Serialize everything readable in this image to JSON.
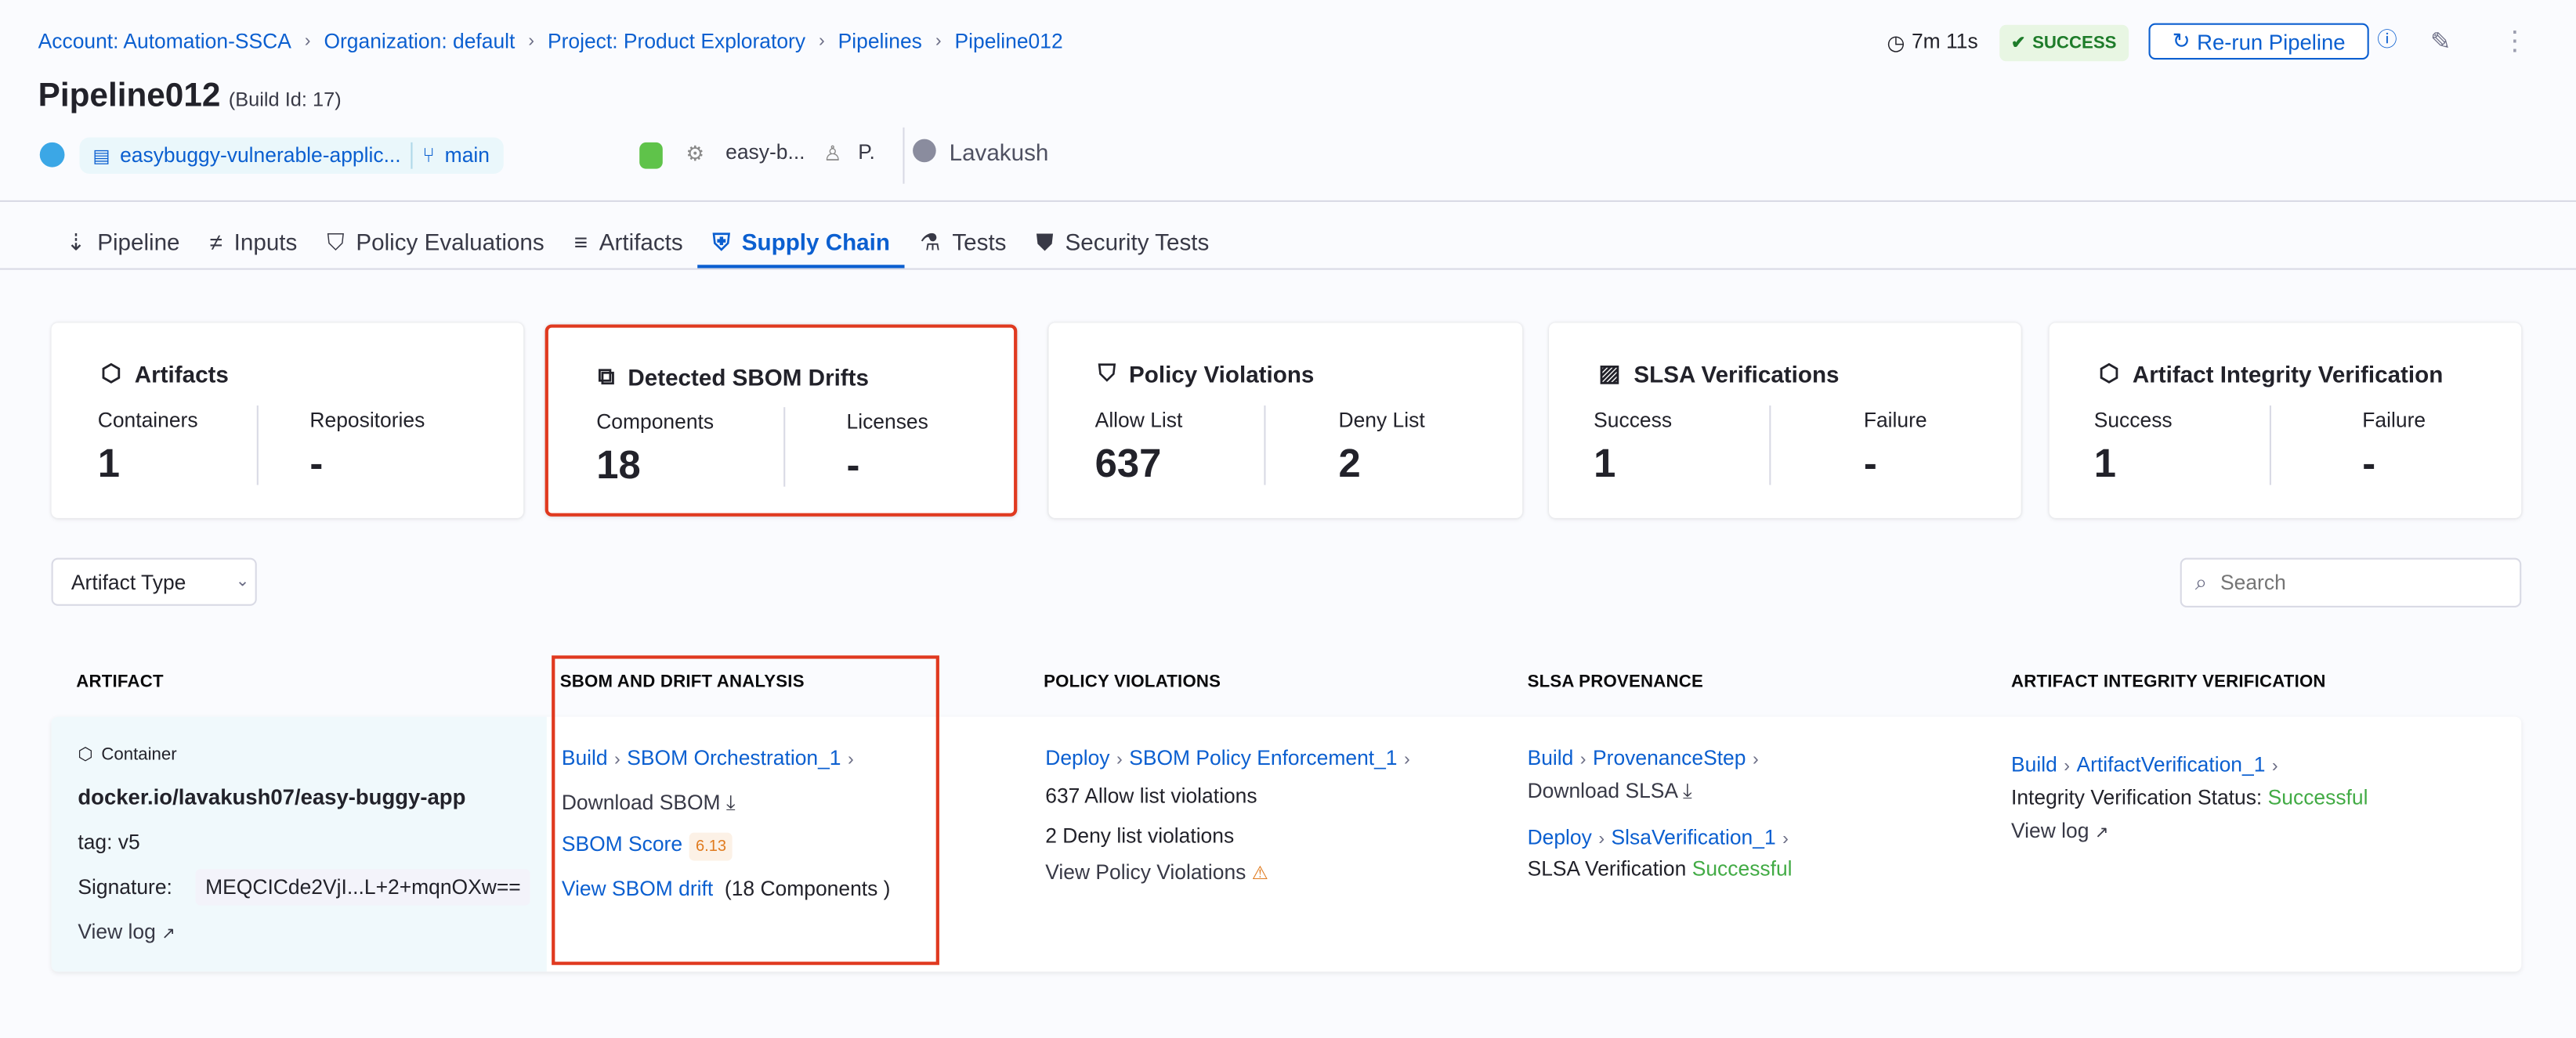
{
  "breadcrumb": [
    "Account: Automation-SSCA",
    "Organization: default",
    "Project: Product Exploratory",
    "Pipelines",
    "Pipeline012"
  ],
  "header": {
    "title": "Pipeline012",
    "build_id": "(Build Id: 17)",
    "repo": "easybuggy-vulnerable-applic...",
    "branch": "main",
    "stage": "easy-b...",
    "infra": "P.",
    "user": "Lavakush",
    "duration": "7m 11s",
    "status": "SUCCESS",
    "rerun_label": "Re-run Pipeline"
  },
  "tabs": [
    {
      "label": "Pipeline"
    },
    {
      "label": "Inputs"
    },
    {
      "label": "Policy Evaluations"
    },
    {
      "label": "Artifacts"
    },
    {
      "label": "Supply Chain",
      "active": true
    },
    {
      "label": "Tests"
    },
    {
      "label": "Security Tests"
    }
  ],
  "cards": [
    {
      "title": "Artifacts",
      "left_label": "Containers",
      "left_value": "1",
      "right_label": "Repositories",
      "right_value": "-"
    },
    {
      "title": "Detected SBOM Drifts",
      "left_label": "Components",
      "left_value": "18",
      "right_label": "Licenses",
      "right_value": "-",
      "highlighted": true
    },
    {
      "title": "Policy Violations",
      "left_label": "Allow List",
      "left_value": "637",
      "right_label": "Deny List",
      "right_value": "2"
    },
    {
      "title": "SLSA Verifications",
      "left_label": "Success",
      "left_value": "1",
      "right_label": "Failure",
      "right_value": "-"
    },
    {
      "title": "Artifact Integrity Verification",
      "left_label": "Success",
      "left_value": "1",
      "right_label": "Failure",
      "right_value": "-"
    }
  ],
  "filter": {
    "artifact_type": "Artifact Type",
    "search_placeholder": "Search"
  },
  "table": {
    "headers": [
      "ARTIFACT",
      "SBOM AND DRIFT ANALYSIS",
      "POLICY VIOLATIONS",
      "SLSA PROVENANCE",
      "ARTIFACT INTEGRITY VERIFICATION"
    ],
    "row": {
      "artifact": {
        "type": "Container",
        "name": "docker.io/lavakush07/easy-buggy-app",
        "tag": "tag: v5",
        "signature_label": "Signature:",
        "signature": "MEQCICde2VjI...L+2+mqnOXw==",
        "view_log": "View log"
      },
      "sbom": {
        "stage": "Build",
        "step": "SBOM Orchestration_1",
        "download": "Download SBOM",
        "score_label": "SBOM Score",
        "score": "6.13",
        "drift_link": "View SBOM drift",
        "drift_count": "(18 Components )"
      },
      "policy": {
        "stage": "Deploy",
        "step": "SBOM Policy Enforcement_1",
        "allow": "637 Allow list violations",
        "deny": "2 Deny list violations",
        "view": "View Policy Violations"
      },
      "slsa": {
        "stage": "Build",
        "step": "ProvenanceStep",
        "download": "Download SLSA",
        "verify_stage": "Deploy",
        "verify_step": "SlsaVerification_1",
        "verify_label": "SLSA Verification",
        "verify_status": "Successful"
      },
      "integrity": {
        "stage": "Build",
        "step": "ArtifactVerification_1",
        "status_label": "Integrity Verification Status:",
        "status": "Successful",
        "view_log": "View log"
      }
    }
  },
  "colors": {
    "accent": "#0b5fd0",
    "success": "#42ab45",
    "highlight": "#e0391f",
    "warning": "#e07b1f"
  }
}
